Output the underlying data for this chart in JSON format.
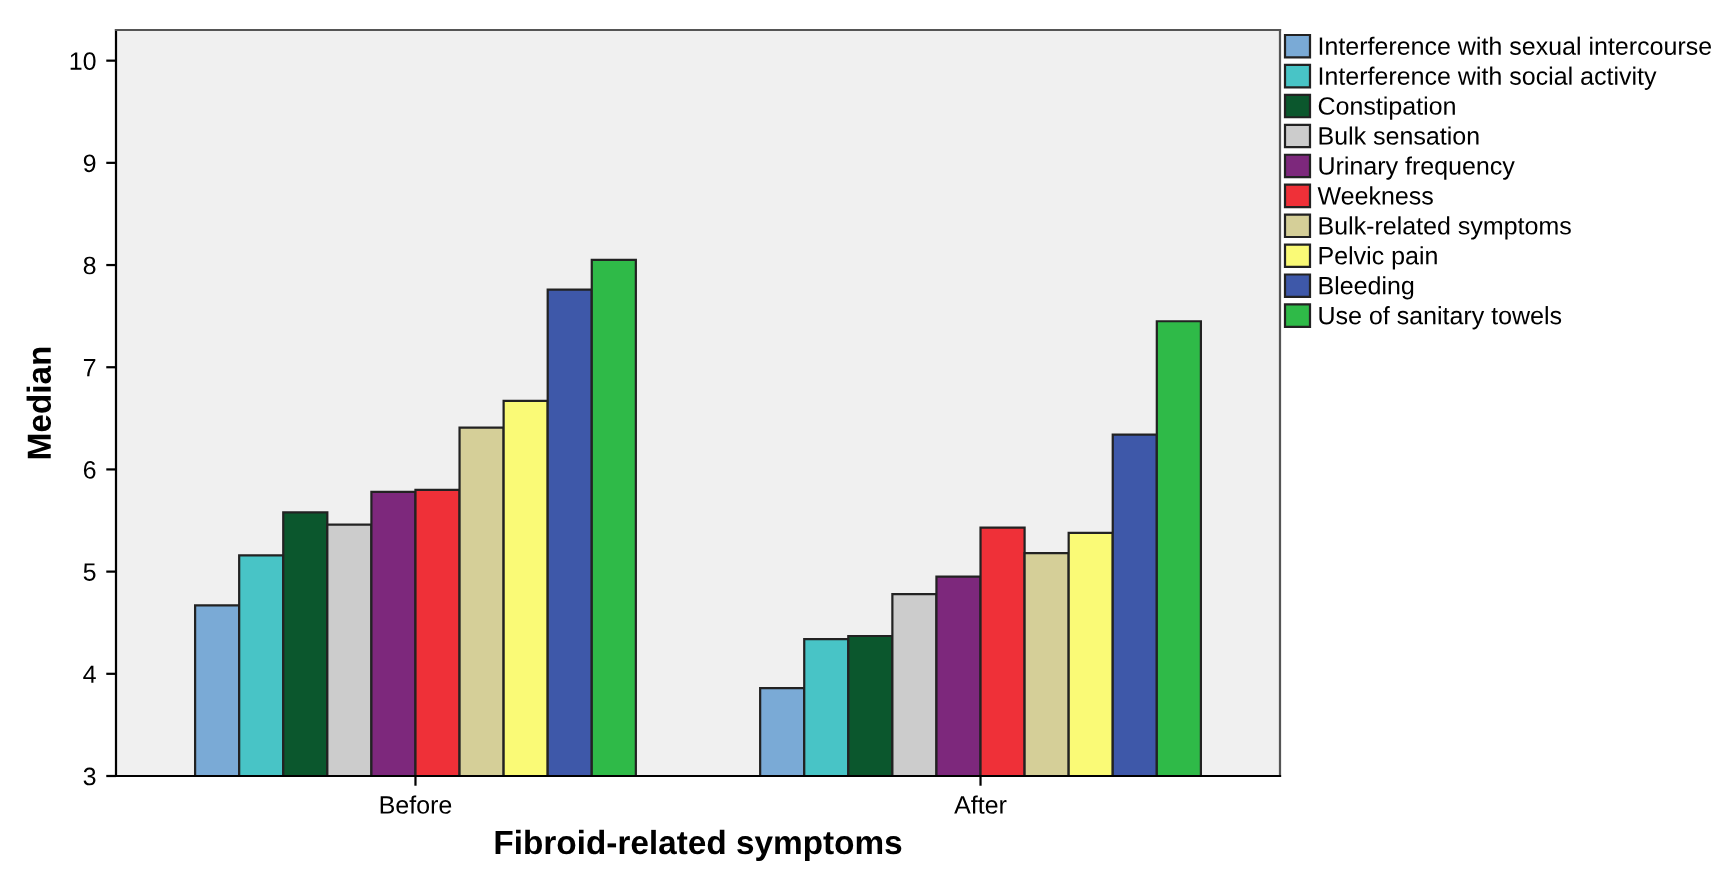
{
  "chart_data": {
    "type": "bar",
    "xlabel": "Fibroid-related symptoms",
    "ylabel": "Median",
    "categories": [
      "Before",
      "After"
    ],
    "series": [
      {
        "name": "Interference with sexual intercourse",
        "color": "#7aaad6",
        "values": [
          4.67,
          3.86
        ]
      },
      {
        "name": "Interference with social activity",
        "color": "#48c4c6",
        "values": [
          5.16,
          4.34
        ]
      },
      {
        "name": "Constipation",
        "color": "#0b572d",
        "values": [
          5.58,
          4.37
        ]
      },
      {
        "name": "Bulk sensation",
        "color": "#cccccc",
        "values": [
          5.46,
          4.78
        ]
      },
      {
        "name": "Urinary frequency",
        "color": "#7d287c",
        "values": [
          5.78,
          4.95
        ]
      },
      {
        "name": "Weekness",
        "color": "#ef3038",
        "values": [
          5.8,
          5.43
        ]
      },
      {
        "name": "Bulk-related symptoms",
        "color": "#d5cf98",
        "values": [
          6.41,
          5.18
        ]
      },
      {
        "name": "Pelvic pain",
        "color": "#fafa76",
        "values": [
          6.67,
          5.38
        ]
      },
      {
        "name": "Bleeding",
        "color": "#3e58a9",
        "values": [
          7.76,
          6.34
        ]
      },
      {
        "name": "Use of sanitary towels",
        "color": "#2fba48",
        "values": [
          8.05,
          7.45
        ]
      }
    ],
    "ylim": [
      3,
      10.3
    ],
    "yticks": [
      3,
      4,
      5,
      6,
      7,
      8,
      9,
      10
    ],
    "grid": false,
    "legend": "top right"
  }
}
